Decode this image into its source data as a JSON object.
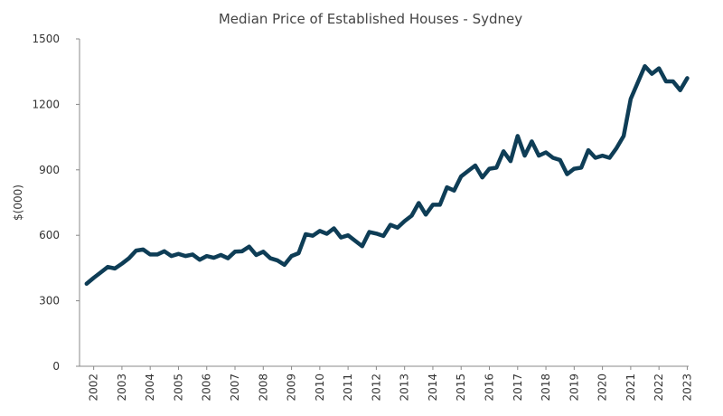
{
  "chart_data": {
    "type": "line",
    "title": "Median Price of Established Houses - Sydney",
    "ylabel": "$(000)",
    "x": [
      2001.75,
      2002,
      2002.25,
      2002.5,
      2002.75,
      2003,
      2003.25,
      2003.5,
      2003.75,
      2004,
      2004.25,
      2004.5,
      2004.75,
      2005,
      2005.25,
      2005.5,
      2005.75,
      2006,
      2006.25,
      2006.5,
      2006.75,
      2007,
      2007.25,
      2007.5,
      2007.75,
      2008,
      2008.25,
      2008.5,
      2008.75,
      2009,
      2009.25,
      2009.5,
      2009.75,
      2010,
      2010.25,
      2010.5,
      2010.75,
      2011,
      2011.25,
      2011.5,
      2011.75,
      2012,
      2012.25,
      2012.5,
      2012.75,
      2013,
      2013.25,
      2013.5,
      2013.75,
      2014,
      2014.25,
      2014.5,
      2014.75,
      2015,
      2015.25,
      2015.5,
      2015.75,
      2016,
      2016.25,
      2016.5,
      2016.75,
      2017,
      2017.25,
      2017.5,
      2017.75,
      2018,
      2018.25,
      2018.5,
      2018.75,
      2019,
      2019.25,
      2019.5,
      2019.75,
      2020,
      2020.25,
      2020.5,
      2020.75,
      2021,
      2021.25,
      2021.5,
      2021.75,
      2022,
      2022.25,
      2022.5,
      2022.75,
      2023
    ],
    "series": [
      {
        "name": "Sydney",
        "color": "#0e3d56",
        "values": [
          378,
          405,
          430,
          455,
          448,
          470,
          495,
          530,
          535,
          512,
          512,
          527,
          505,
          515,
          505,
          512,
          488,
          505,
          497,
          510,
          495,
          525,
          527,
          548,
          510,
          525,
          495,
          485,
          465,
          505,
          518,
          605,
          598,
          620,
          607,
          632,
          590,
          600,
          575,
          550,
          615,
          608,
          597,
          648,
          635,
          665,
          690,
          748,
          695,
          740,
          740,
          820,
          805,
          870,
          895,
          920,
          865,
          905,
          910,
          985,
          940,
          1055,
          965,
          1030,
          965,
          980,
          955,
          945,
          880,
          905,
          910,
          990,
          955,
          965,
          955,
          1000,
          1055,
          1225,
          1300,
          1375,
          1340,
          1365,
          1305,
          1305,
          1265,
          1320
        ]
      }
    ],
    "xlim": [
      2001.5,
      2023.05
    ],
    "xticks": [
      2002,
      2003,
      2004,
      2005,
      2006,
      2007,
      2008,
      2009,
      2010,
      2011,
      2012,
      2013,
      2014,
      2015,
      2016,
      2017,
      2018,
      2019,
      2020,
      2021,
      2022,
      2023
    ],
    "ylim": [
      0,
      1500
    ],
    "yticks": [
      0,
      300,
      600,
      900,
      1200,
      1500
    ],
    "grid": false
  }
}
